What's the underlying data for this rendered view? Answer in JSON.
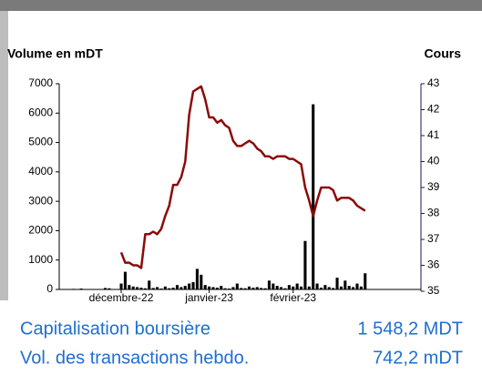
{
  "chart_data": {
    "type": "bar-line",
    "y_label": "Volume en mDT",
    "y2_label": "Cours",
    "categories": [
      null,
      null,
      null,
      null,
      null,
      null,
      null,
      null,
      null,
      null,
      null,
      null,
      null,
      null,
      null,
      "décembre-22",
      null,
      null,
      null,
      null,
      null,
      null,
      null,
      null,
      null,
      null,
      null,
      null,
      null,
      null,
      null,
      null,
      null,
      null,
      null,
      null,
      null,
      "janvier-23",
      null,
      null,
      null,
      null,
      null,
      null,
      null,
      null,
      null,
      null,
      null,
      null,
      null,
      null,
      null,
      null,
      null,
      null,
      null,
      null,
      "février-23",
      null,
      null,
      null,
      null,
      null,
      null,
      null,
      null,
      null,
      null,
      null,
      null,
      null,
      null,
      null,
      null,
      null,
      null,
      null,
      null,
      null,
      null,
      null,
      null,
      null,
      null,
      null,
      null,
      null,
      null,
      null
    ],
    "series": [
      {
        "type": "bar",
        "color": "#000000",
        "axis": "y",
        "values": [
          0,
          0,
          0,
          20,
          0,
          30,
          0,
          0,
          10,
          0,
          0,
          50,
          40,
          0,
          0,
          200,
          600,
          150,
          100,
          80,
          60,
          40,
          300,
          50,
          80,
          30,
          100,
          40,
          60,
          150,
          80,
          120,
          200,
          250,
          700,
          500,
          150,
          100,
          80,
          60,
          120,
          40,
          30,
          80,
          200,
          50,
          40,
          100,
          60,
          80,
          50,
          40,
          300,
          200,
          120,
          80,
          40,
          150,
          100,
          200,
          100,
          1650,
          100,
          6300,
          200,
          60,
          150,
          80,
          50,
          400,
          100,
          300,
          120,
          80,
          200,
          100,
          550,
          0,
          0,
          0,
          0,
          0,
          0,
          0,
          0,
          0,
          0,
          0,
          0,
          0
        ]
      },
      {
        "type": "line",
        "color": "#8b0a0a",
        "axis": "y2",
        "values": [
          null,
          null,
          null,
          null,
          null,
          null,
          null,
          null,
          null,
          null,
          null,
          null,
          null,
          null,
          null,
          36.5,
          36.1,
          36.1,
          36.0,
          36.0,
          35.9,
          37.2,
          37.2,
          37.3,
          37.2,
          37.4,
          37.9,
          38.3,
          39.1,
          39.1,
          39.4,
          40.0,
          41.8,
          42.7,
          42.8,
          42.9,
          42.4,
          41.7,
          41.7,
          41.5,
          41.6,
          41.4,
          41.3,
          40.8,
          40.6,
          40.6,
          40.7,
          40.8,
          40.7,
          40.5,
          40.4,
          40.2,
          40.2,
          40.1,
          40.2,
          40.2,
          40.2,
          40.1,
          40.1,
          40.0,
          39.9,
          39.0,
          38.5,
          37.9,
          38.5,
          39.0,
          39.0,
          39.0,
          38.9,
          38.5,
          38.6,
          38.6,
          38.6,
          38.5,
          38.3,
          38.2,
          38.1,
          null,
          null,
          null,
          null,
          null,
          null,
          null,
          null,
          null,
          null,
          null,
          null,
          null
        ]
      }
    ],
    "ylim": [
      0,
      7000
    ],
    "yticks": [
      0,
      1000,
      2000,
      3000,
      4000,
      5000,
      6000,
      7000
    ],
    "y2lim": [
      35,
      43
    ],
    "y2ticks": [
      35,
      36,
      37,
      38,
      39,
      40,
      41,
      42,
      43
    ]
  },
  "info": [
    {
      "label": "Capitalisation boursière",
      "value": "1 548,2 MDT"
    },
    {
      "label": "Vol. des transactions hebdo.",
      "value": "742,2 mDT"
    }
  ]
}
